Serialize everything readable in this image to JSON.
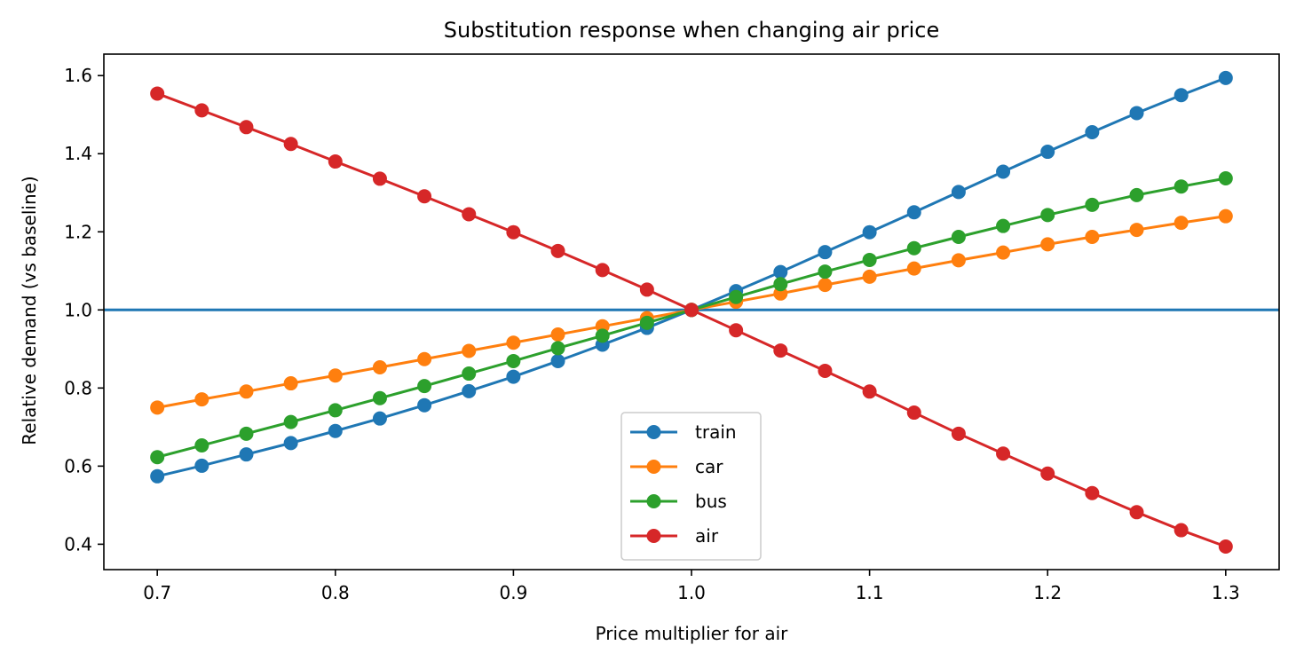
{
  "chart_data": {
    "type": "line",
    "title": "Substitution response when changing air price",
    "xlabel": "Price multiplier for air",
    "ylabel": "Relative demand (vs baseline)",
    "xlim": [
      0.67,
      1.33
    ],
    "ylim": [
      0.335,
      1.655
    ],
    "xticks": [
      0.7,
      0.8,
      0.9,
      1.0,
      1.1,
      1.2,
      1.3
    ],
    "xtick_labels": [
      "0.7",
      "0.8",
      "0.9",
      "1.0",
      "1.1",
      "1.2",
      "1.3"
    ],
    "yticks": [
      0.4,
      0.6,
      0.8,
      1.0,
      1.2,
      1.4,
      1.6
    ],
    "ytick_labels": [
      "0.4",
      "0.6",
      "0.8",
      "1.0",
      "1.2",
      "1.4",
      "1.6"
    ],
    "grid": false,
    "legend_position": "lower-center",
    "reference_line": {
      "y": 1.0,
      "color": "#1f77b4"
    },
    "x": [
      0.7,
      0.725,
      0.75,
      0.775,
      0.8,
      0.825,
      0.85,
      0.875,
      0.9,
      0.925,
      0.95,
      0.975,
      1.0,
      1.025,
      1.05,
      1.075,
      1.1,
      1.125,
      1.15,
      1.175,
      1.2,
      1.225,
      1.25,
      1.275,
      1.3
    ],
    "series": [
      {
        "name": "train",
        "color": "#1f77b4",
        "values": [
          0.574,
          0.601,
          0.63,
          0.659,
          0.69,
          0.722,
          0.756,
          0.792,
          0.829,
          0.869,
          0.911,
          0.954,
          1.0,
          1.048,
          1.097,
          1.148,
          1.199,
          1.25,
          1.302,
          1.354,
          1.405,
          1.455,
          1.504,
          1.55,
          1.594
        ]
      },
      {
        "name": "car",
        "color": "#ff7f0e",
        "values": [
          0.75,
          0.771,
          0.791,
          0.812,
          0.832,
          0.853,
          0.874,
          0.895,
          0.916,
          0.937,
          0.958,
          0.979,
          1.0,
          1.021,
          1.042,
          1.064,
          1.085,
          1.106,
          1.127,
          1.147,
          1.168,
          1.187,
          1.205,
          1.223,
          1.24
        ]
      },
      {
        "name": "bus",
        "color": "#2ca02c",
        "values": [
          0.623,
          0.653,
          0.683,
          0.713,
          0.743,
          0.774,
          0.805,
          0.837,
          0.869,
          0.902,
          0.934,
          0.967,
          1.0,
          1.033,
          1.066,
          1.098,
          1.128,
          1.158,
          1.187,
          1.215,
          1.243,
          1.269,
          1.294,
          1.316,
          1.337
        ]
      },
      {
        "name": "air",
        "color": "#d62728",
        "values": [
          1.554,
          1.511,
          1.468,
          1.425,
          1.38,
          1.336,
          1.291,
          1.245,
          1.199,
          1.151,
          1.102,
          1.052,
          1.0,
          0.948,
          0.896,
          0.844,
          0.791,
          0.737,
          0.683,
          0.632,
          0.581,
          0.531,
          0.482,
          0.436,
          0.394
        ]
      }
    ]
  }
}
